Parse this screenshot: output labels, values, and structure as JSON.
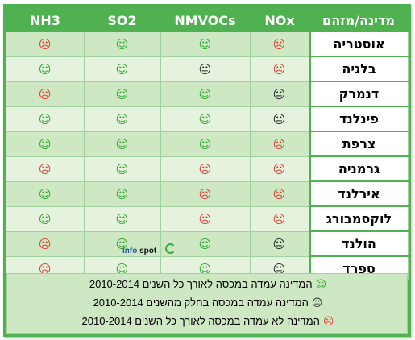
{
  "headers": {
    "nh3": "NH3",
    "so2": "SO2",
    "nmvocs": "NMVOCs",
    "nox": "NOx",
    "country": "מדינה/מזהם"
  },
  "rows": [
    {
      "country": "אוסטריה",
      "nh3": "frown",
      "so2": "smile",
      "nmvocs": "smile",
      "nox": "frown"
    },
    {
      "country": "בלגיה",
      "nh3": "smile",
      "so2": "smile",
      "nmvocs": "neutral",
      "nox": "frown"
    },
    {
      "country": "דנמרק",
      "nh3": "frown",
      "so2": "smile",
      "nmvocs": "smile",
      "nox": "neutral"
    },
    {
      "country": "פינלנד",
      "nh3": "smile",
      "so2": "smile",
      "nmvocs": "smile",
      "nox": "neutral"
    },
    {
      "country": "צרפת",
      "nh3": "smile",
      "so2": "smile",
      "nmvocs": "smile",
      "nox": "frown"
    },
    {
      "country": "גרמניה",
      "nh3": "frown",
      "so2": "smile",
      "nmvocs": "frown",
      "nox": "frown"
    },
    {
      "country": "אירלנד",
      "nh3": "smile",
      "so2": "smile",
      "nmvocs": "frown",
      "nox": "frown"
    },
    {
      "country": "לוקסמבורג",
      "nh3": "smile",
      "so2": "smile",
      "nmvocs": "frown",
      "nox": "frown"
    },
    {
      "country": "הולנד",
      "nh3": "frown",
      "so2": "smile",
      "nmvocs": "smile",
      "nox": "neutral"
    },
    {
      "country": "ספרד",
      "nh3": "frown",
      "so2": "smile",
      "nmvocs": "smile",
      "nox": "neutral"
    }
  ],
  "faces": {
    "smile": "☺",
    "neutral": "😐",
    "frown": "☹"
  },
  "face_colors": {
    "smile": "#2aa82a",
    "neutral": "#222222",
    "frown": "#e03a2e"
  },
  "legend": [
    {
      "icon": "smile",
      "text": "המדינה עמדה במכסה לאורך כל השנים 2010-2014"
    },
    {
      "icon": "neutral",
      "text": "המדינה עמדה במכסה בחלק מהשנים 2010-2014"
    },
    {
      "icon": "frown",
      "text": "המדינה לא עמדה במכסה לאורך כל השנים 2010-2014"
    }
  ],
  "watermark": {
    "info": "info",
    "spot": "spot"
  }
}
